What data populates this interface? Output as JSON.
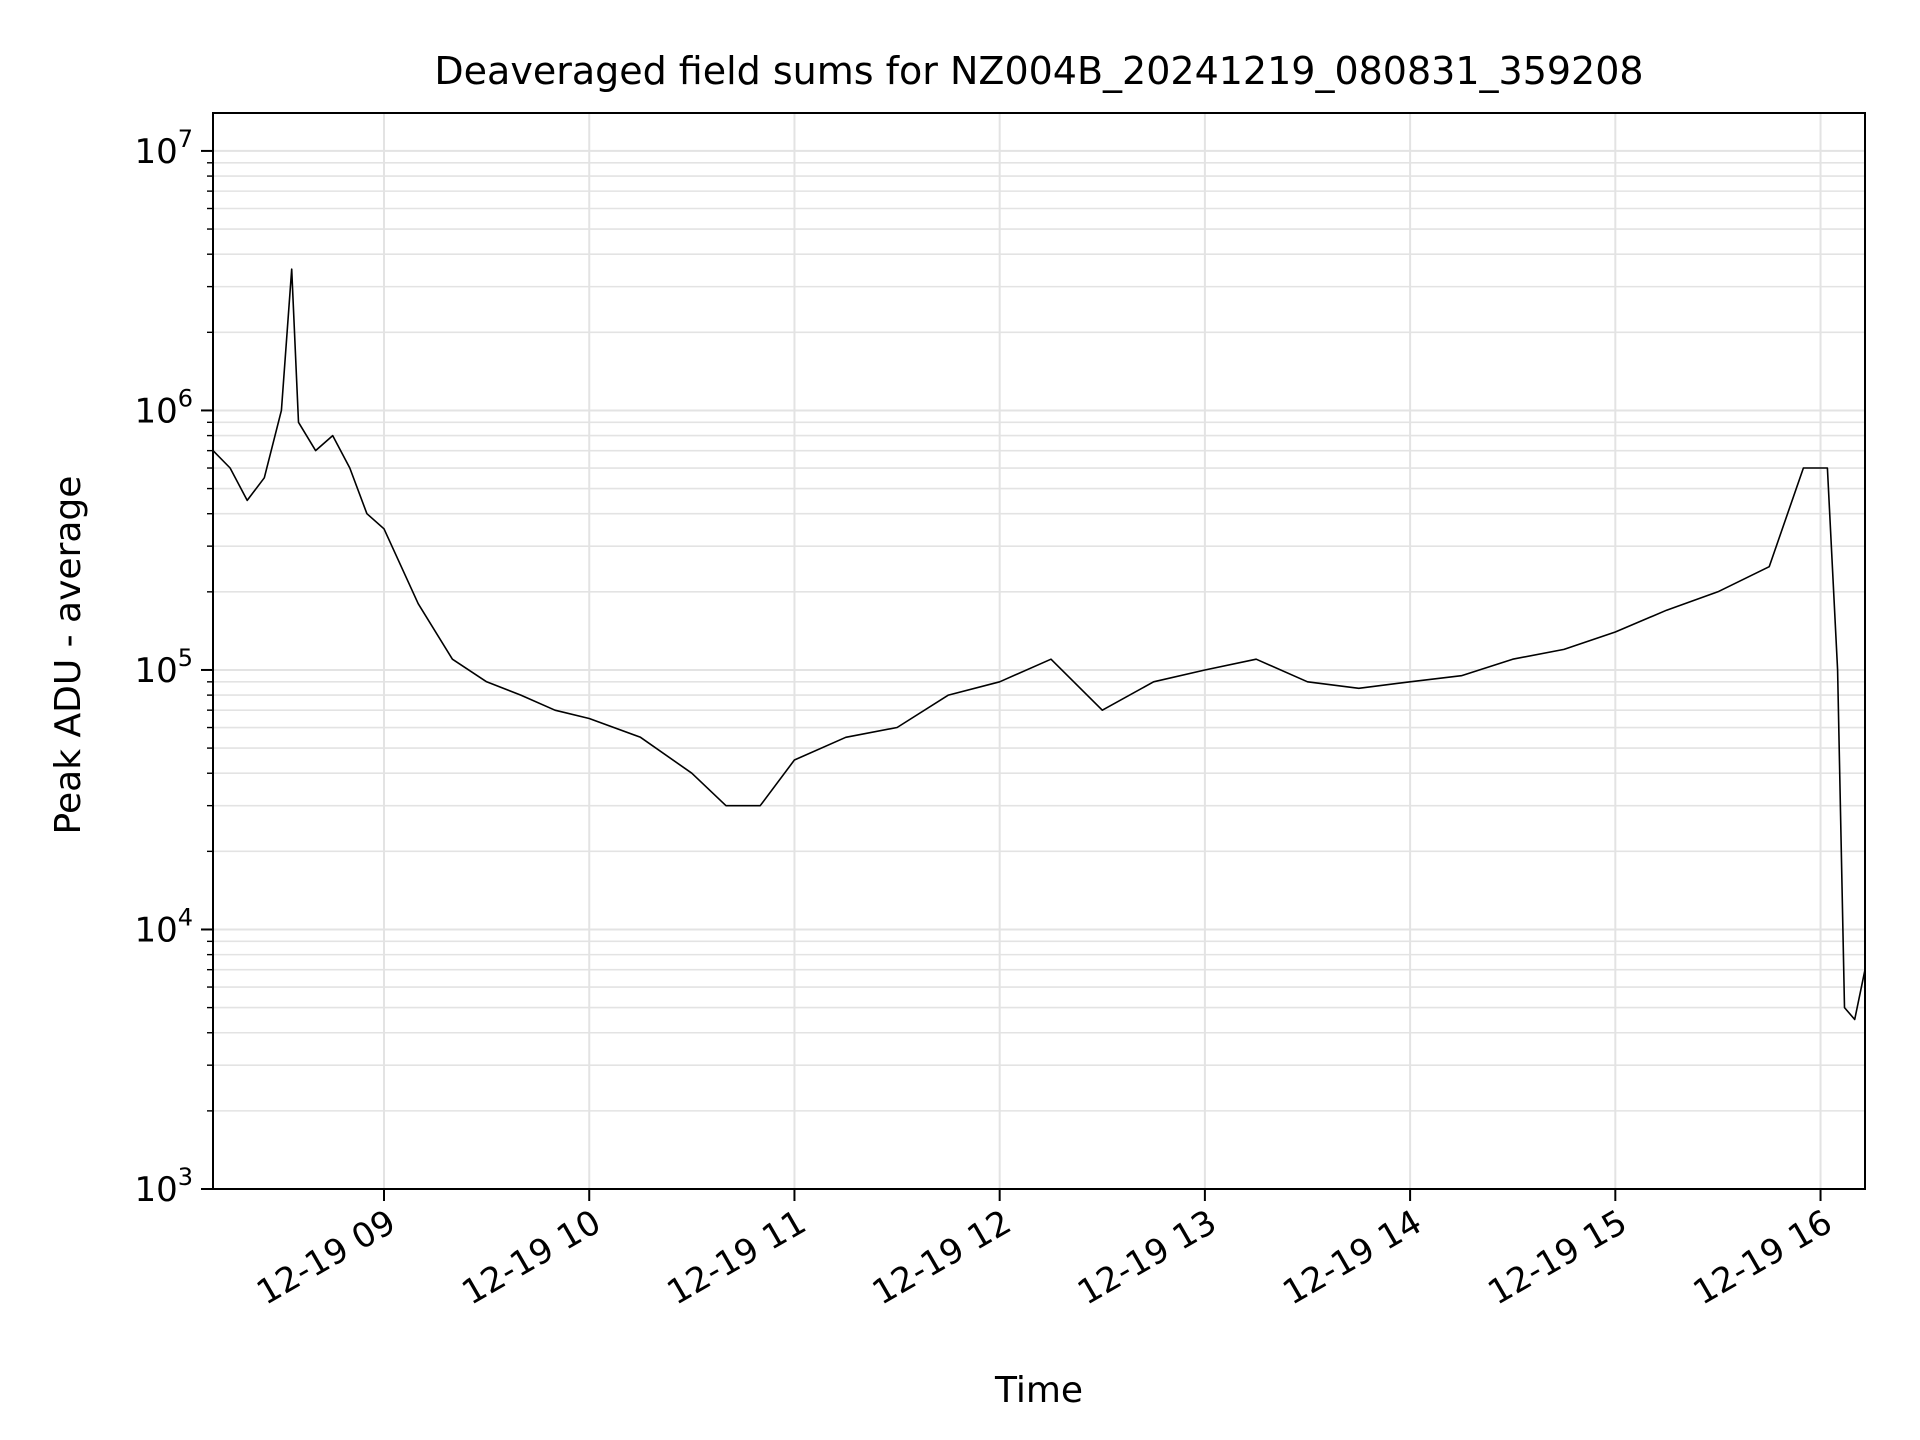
{
  "chart_data": {
    "type": "line",
    "title": "Deaveraged field sums for NZ004B_20241219_080831_359208",
    "xlabel": "Time",
    "ylabel": "Peak ADU - average",
    "yscale": "log",
    "ylim": [
      1000,
      14000000
    ],
    "xlim": [
      "2024-12-19 08:10",
      "2024-12-19 16:13"
    ],
    "grid": true,
    "line_color": "#000000",
    "grid_color": "#e3e3e3",
    "x_ticks": [
      {
        "x": "2024-12-19 09:00",
        "label": "12-19 09"
      },
      {
        "x": "2024-12-19 10:00",
        "label": "12-19 10"
      },
      {
        "x": "2024-12-19 11:00",
        "label": "12-19 11"
      },
      {
        "x": "2024-12-19 12:00",
        "label": "12-19 12"
      },
      {
        "x": "2024-12-19 13:00",
        "label": "12-19 13"
      },
      {
        "x": "2024-12-19 14:00",
        "label": "12-19 14"
      },
      {
        "x": "2024-12-19 15:00",
        "label": "12-19 15"
      },
      {
        "x": "2024-12-19 16:00",
        "label": "12-19 16"
      }
    ],
    "y_ticks": [
      {
        "value": 1000,
        "base": "10",
        "exp": "3"
      },
      {
        "value": 10000,
        "base": "10",
        "exp": "4"
      },
      {
        "value": 100000,
        "base": "10",
        "exp": "5"
      },
      {
        "value": 1000000,
        "base": "10",
        "exp": "6"
      },
      {
        "value": 10000000,
        "base": "10",
        "exp": "7"
      }
    ],
    "series": [
      {
        "x": [
          "2024-12-19 08:10",
          "2024-12-19 08:15",
          "2024-12-19 08:20",
          "2024-12-19 08:25",
          "2024-12-19 08:30",
          "2024-12-19 08:33",
          "2024-12-19 08:35",
          "2024-12-19 08:40",
          "2024-12-19 08:45",
          "2024-12-19 08:50",
          "2024-12-19 08:55",
          "2024-12-19 09:00",
          "2024-12-19 09:10",
          "2024-12-19 09:20",
          "2024-12-19 09:30",
          "2024-12-19 09:40",
          "2024-12-19 09:50",
          "2024-12-19 10:00",
          "2024-12-19 10:15",
          "2024-12-19 10:30",
          "2024-12-19 10:40",
          "2024-12-19 10:50",
          "2024-12-19 11:00",
          "2024-12-19 11:15",
          "2024-12-19 11:30",
          "2024-12-19 11:45",
          "2024-12-19 12:00",
          "2024-12-19 12:15",
          "2024-12-19 12:30",
          "2024-12-19 12:45",
          "2024-12-19 13:00",
          "2024-12-19 13:15",
          "2024-12-19 13:30",
          "2024-12-19 13:45",
          "2024-12-19 14:00",
          "2024-12-19 14:15",
          "2024-12-19 14:30",
          "2024-12-19 14:45",
          "2024-12-19 15:00",
          "2024-12-19 15:15",
          "2024-12-19 15:30",
          "2024-12-19 15:45",
          "2024-12-19 15:55",
          "2024-12-19 16:02",
          "2024-12-19 16:05",
          "2024-12-19 16:07",
          "2024-12-19 16:10",
          "2024-12-19 16:13"
        ],
        "y": [
          700000,
          600000,
          450000,
          550000,
          1000000,
          3500000,
          900000,
          700000,
          800000,
          600000,
          400000,
          350000,
          180000,
          110000,
          90000,
          80000,
          70000,
          65000,
          55000,
          40000,
          30000,
          30000,
          45000,
          55000,
          60000,
          80000,
          90000,
          110000,
          70000,
          90000,
          100000,
          110000,
          90000,
          85000,
          90000,
          95000,
          110000,
          120000,
          140000,
          170000,
          200000,
          250000,
          600000,
          600000,
          100000,
          5000,
          4500,
          7000
        ]
      }
    ]
  }
}
